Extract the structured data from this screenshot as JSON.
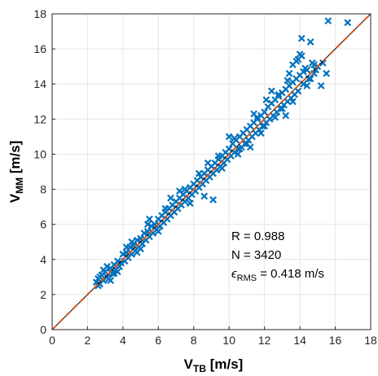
{
  "chart_data": {
    "type": "scatter",
    "title": "",
    "xlabel": {
      "main": "V",
      "sub": "TB",
      "unit": " [m/s]"
    },
    "ylabel": {
      "main": "V",
      "sub": "MM",
      "unit": " [m/s]"
    },
    "xlim": [
      0,
      18
    ],
    "ylim": [
      0,
      18
    ],
    "xticks": [
      "0",
      "2",
      "4",
      "6",
      "8",
      "10",
      "12",
      "14",
      "16",
      "18"
    ],
    "yticks": [
      "0",
      "2",
      "4",
      "6",
      "8",
      "10",
      "12",
      "14",
      "16",
      "18"
    ],
    "grid": true,
    "marker": "x",
    "color": "#0072BD",
    "reference_lines": [
      {
        "kind": "identity",
        "style": "solid",
        "color": "#000000"
      },
      {
        "kind": "fit",
        "style": "dashed",
        "color": "#D95319"
      }
    ],
    "annotations": {
      "r": "R = 0.988",
      "n": "N = 3420",
      "rms_symbol": "ϵ",
      "rms_sub": "RMS",
      "rms_value": " = 0.418 m/s"
    },
    "series": [
      {
        "values": [
          [
            2.5,
            2.7
          ],
          [
            2.6,
            2.9
          ],
          [
            2.7,
            2.6
          ],
          [
            2.8,
            3.1
          ],
          [
            2.9,
            2.8
          ],
          [
            3.0,
            3.3
          ],
          [
            3.1,
            3.0
          ],
          [
            3.2,
            2.9
          ],
          [
            3.3,
            3.5
          ],
          [
            3.4,
            3.2
          ],
          [
            3.5,
            3.7
          ],
          [
            3.6,
            3.4
          ],
          [
            3.7,
            3.9
          ],
          [
            3.8,
            3.6
          ],
          [
            3.9,
            3.8
          ],
          [
            4.0,
            4.3
          ],
          [
            4.1,
            3.9
          ],
          [
            4.2,
            4.4
          ],
          [
            4.3,
            4.1
          ],
          [
            4.4,
            4.7
          ],
          [
            4.5,
            4.3
          ],
          [
            4.6,
            4.8
          ],
          [
            4.7,
            4.5
          ],
          [
            4.8,
            5.1
          ],
          [
            4.9,
            4.7
          ],
          [
            5.0,
            5.2
          ],
          [
            5.1,
            4.9
          ],
          [
            5.2,
            5.5
          ],
          [
            5.3,
            5.1
          ],
          [
            5.4,
            5.6
          ],
          [
            5.5,
            5.3
          ],
          [
            5.6,
            5.9
          ],
          [
            5.7,
            5.5
          ],
          [
            5.8,
            6.0
          ],
          [
            5.9,
            5.7
          ],
          [
            6.0,
            6.3
          ],
          [
            6.1,
            5.9
          ],
          [
            6.2,
            6.5
          ],
          [
            6.3,
            6.1
          ],
          [
            6.4,
            6.7
          ],
          [
            6.5,
            6.3
          ],
          [
            6.6,
            6.9
          ],
          [
            6.7,
            6.5
          ],
          [
            6.8,
            7.1
          ],
          [
            6.9,
            6.7
          ],
          [
            7.0,
            7.3
          ],
          [
            7.1,
            6.9
          ],
          [
            7.2,
            7.5
          ],
          [
            7.3,
            7.1
          ],
          [
            7.4,
            7.7
          ],
          [
            7.5,
            7.3
          ],
          [
            7.6,
            7.9
          ],
          [
            7.7,
            7.5
          ],
          [
            7.8,
            8.1
          ],
          [
            7.9,
            7.7
          ],
          [
            8.0,
            8.3
          ],
          [
            8.1,
            7.9
          ],
          [
            8.2,
            8.5
          ],
          [
            8.3,
            8.1
          ],
          [
            8.4,
            8.7
          ],
          [
            8.5,
            8.3
          ],
          [
            8.6,
            8.9
          ],
          [
            8.7,
            8.5
          ],
          [
            8.8,
            9.1
          ],
          [
            8.9,
            8.7
          ],
          [
            9.0,
            9.3
          ],
          [
            9.1,
            8.9
          ],
          [
            9.2,
            9.5
          ],
          [
            9.3,
            9.1
          ],
          [
            9.4,
            9.7
          ],
          [
            9.5,
            9.3
          ],
          [
            9.6,
            9.9
          ],
          [
            9.7,
            9.5
          ],
          [
            9.8,
            10.1
          ],
          [
            9.9,
            9.7
          ],
          [
            10.0,
            10.3
          ],
          [
            10.1,
            9.9
          ],
          [
            10.2,
            10.6
          ],
          [
            10.3,
            10.1
          ],
          [
            10.4,
            10.8
          ],
          [
            10.5,
            10.3
          ],
          [
            10.6,
            11.0
          ],
          [
            10.7,
            10.4
          ],
          [
            10.8,
            11.2
          ],
          [
            10.9,
            10.6
          ],
          [
            11.0,
            11.4
          ],
          [
            11.1,
            10.8
          ],
          [
            11.2,
            11.6
          ],
          [
            11.3,
            11.0
          ],
          [
            11.4,
            11.8
          ],
          [
            11.5,
            11.2
          ],
          [
            11.6,
            12.0
          ],
          [
            11.7,
            11.4
          ],
          [
            11.8,
            12.2
          ],
          [
            11.9,
            11.6
          ],
          [
            12.0,
            12.4
          ],
          [
            12.1,
            11.8
          ],
          [
            12.2,
            12.7
          ],
          [
            12.3,
            12.0
          ],
          [
            12.4,
            12.9
          ],
          [
            12.5,
            12.2
          ],
          [
            12.6,
            13.1
          ],
          [
            12.7,
            12.4
          ],
          [
            12.8,
            13.3
          ],
          [
            12.9,
            12.6
          ],
          [
            13.0,
            13.5
          ],
          [
            13.1,
            12.8
          ],
          [
            13.2,
            13.7
          ],
          [
            13.3,
            13.0
          ],
          [
            13.4,
            13.9
          ],
          [
            13.5,
            13.2
          ],
          [
            13.6,
            14.1
          ],
          [
            13.7,
            13.4
          ],
          [
            13.8,
            14.3
          ],
          [
            13.9,
            13.6
          ],
          [
            14.0,
            14.5
          ],
          [
            14.2,
            14.0
          ],
          [
            14.4,
            14.8
          ],
          [
            14.6,
            14.3
          ],
          [
            14.8,
            15.1
          ],
          [
            3.3,
            2.8
          ],
          [
            5.5,
            6.3
          ],
          [
            6.7,
            7.5
          ],
          [
            8.6,
            7.6
          ],
          [
            9.1,
            7.4
          ],
          [
            10.0,
            11.0
          ],
          [
            10.5,
            10.0
          ],
          [
            11.8,
            11.2
          ],
          [
            12.4,
            13.6
          ],
          [
            13.2,
            12.2
          ],
          [
            13.4,
            14.6
          ],
          [
            13.6,
            15.1
          ],
          [
            13.9,
            15.4
          ],
          [
            14.1,
            15.6
          ],
          [
            14.3,
            14.9
          ],
          [
            14.5,
            14.3
          ],
          [
            14.9,
            14.8
          ],
          [
            15.2,
            13.9
          ],
          [
            15.5,
            14.6
          ],
          [
            15.6,
            17.6
          ],
          [
            16.7,
            17.5
          ],
          [
            14.1,
            16.6
          ],
          [
            14.0,
            15.7
          ],
          [
            13.8,
            15.3
          ],
          [
            13.3,
            14.2
          ],
          [
            12.6,
            12.1
          ],
          [
            12.1,
            13.1
          ],
          [
            11.4,
            12.3
          ],
          [
            11.2,
            10.4
          ],
          [
            10.6,
            10.3
          ],
          [
            9.4,
            9.9
          ],
          [
            8.3,
            8.9
          ],
          [
            7.8,
            7.2
          ],
          [
            7.2,
            7.9
          ],
          [
            6.4,
            6.9
          ],
          [
            6.0,
            5.6
          ],
          [
            5.4,
            6.0
          ],
          [
            4.8,
            4.4
          ],
          [
            4.2,
            4.7
          ],
          [
            3.7,
            3.3
          ],
          [
            3.1,
            3.6
          ],
          [
            2.9,
            3.4
          ],
          [
            2.7,
            3.0
          ],
          [
            2.6,
            2.5
          ],
          [
            3.5,
            3.2
          ],
          [
            4.5,
            5.0
          ],
          [
            5.0,
            4.6
          ],
          [
            7.5,
            8.0
          ],
          [
            8.8,
            9.5
          ],
          [
            9.6,
            9.2
          ],
          [
            10.3,
            10.9
          ],
          [
            11.0,
            10.6
          ],
          [
            11.6,
            12.1
          ],
          [
            12.0,
            11.6
          ],
          [
            12.8,
            13.4
          ],
          [
            13.0,
            12.6
          ],
          [
            13.6,
            13.0
          ],
          [
            14.2,
            14.7
          ],
          [
            14.4,
            13.9
          ],
          [
            14.7,
            15.2
          ],
          [
            14.8,
            14.6
          ],
          [
            15.0,
            15.0
          ],
          [
            15.3,
            15.2
          ],
          [
            14.6,
            16.4
          ]
        ]
      }
    ]
  }
}
